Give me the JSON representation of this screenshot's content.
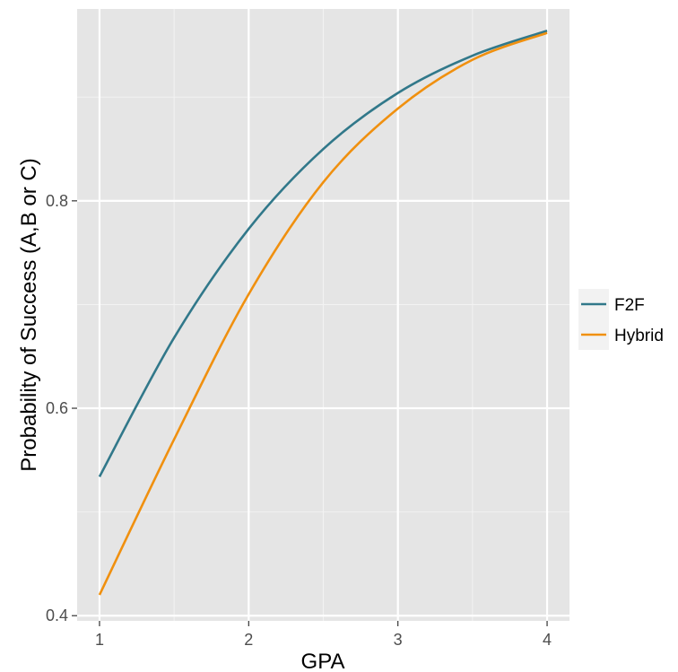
{
  "chart_data": {
    "type": "line",
    "xlabel": "GPA",
    "ylabel": "Probability of Success (A,B or C)",
    "xlim": [
      0.85,
      4.15
    ],
    "ylim": [
      0.395,
      0.985
    ],
    "x_ticks": [
      1,
      2,
      3,
      4
    ],
    "x_tick_labels": [
      "1",
      "2",
      "3",
      "4"
    ],
    "y_ticks": [
      0.4,
      0.6,
      0.8
    ],
    "y_tick_labels": [
      "0.4",
      "0.6",
      "0.8"
    ],
    "y_minor_ticks": [
      0.5,
      0.7,
      0.9
    ],
    "grid": true,
    "panel_background": "#e5e5e5",
    "grid_color": "#ffffff",
    "legend_position": "right",
    "x": [
      1,
      1.5,
      2,
      2.5,
      3,
      3.5,
      4
    ],
    "series": [
      {
        "name": "F2F",
        "color": "#31788a",
        "values": [
          0.534,
          0.668,
          0.773,
          0.85,
          0.904,
          0.94,
          0.964
        ]
      },
      {
        "name": "Hybrid",
        "color": "#f0900f",
        "values": [
          0.42,
          0.57,
          0.71,
          0.818,
          0.889,
          0.936,
          0.962
        ]
      }
    ]
  }
}
